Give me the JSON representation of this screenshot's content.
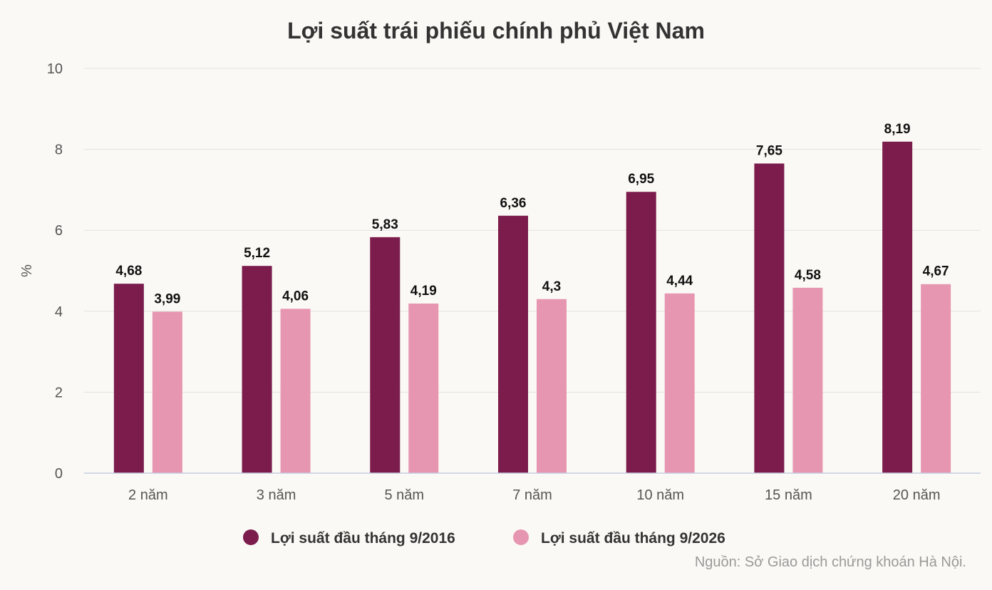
{
  "chart_data": {
    "type": "bar",
    "title": "Lợi suất trái phiếu chính phủ Việt Nam",
    "ylabel": "%",
    "xlabel": "",
    "ylim": [
      0,
      10
    ],
    "yticks": [
      "0",
      "2",
      "4",
      "6",
      "8",
      "10"
    ],
    "categories": [
      "2 năm",
      "3 năm",
      "5 năm",
      "7 năm",
      "10 năm",
      "15 năm",
      "20 năm"
    ],
    "series": [
      {
        "name": "Lợi suất đầu tháng 9/2016",
        "color": "#7b1c4c",
        "values": [
          4.68,
          5.12,
          5.83,
          6.36,
          6.95,
          7.65,
          8.19
        ],
        "labels": [
          "4,68",
          "5,12",
          "5,83",
          "6,36",
          "6,95",
          "7,65",
          "8,19"
        ]
      },
      {
        "name": "Lợi suất đầu tháng 9/2026",
        "color": "#e796b1",
        "values": [
          3.99,
          4.06,
          4.19,
          4.3,
          4.44,
          4.58,
          4.67
        ],
        "labels": [
          "3,99",
          "4,06",
          "4,19",
          "4,3",
          "4,44",
          "4,58",
          "4,67"
        ]
      }
    ],
    "grid": true,
    "legend_position": "bottom",
    "source": "Nguồn: Sở Giao dịch chứng khoán Hà Nội."
  }
}
